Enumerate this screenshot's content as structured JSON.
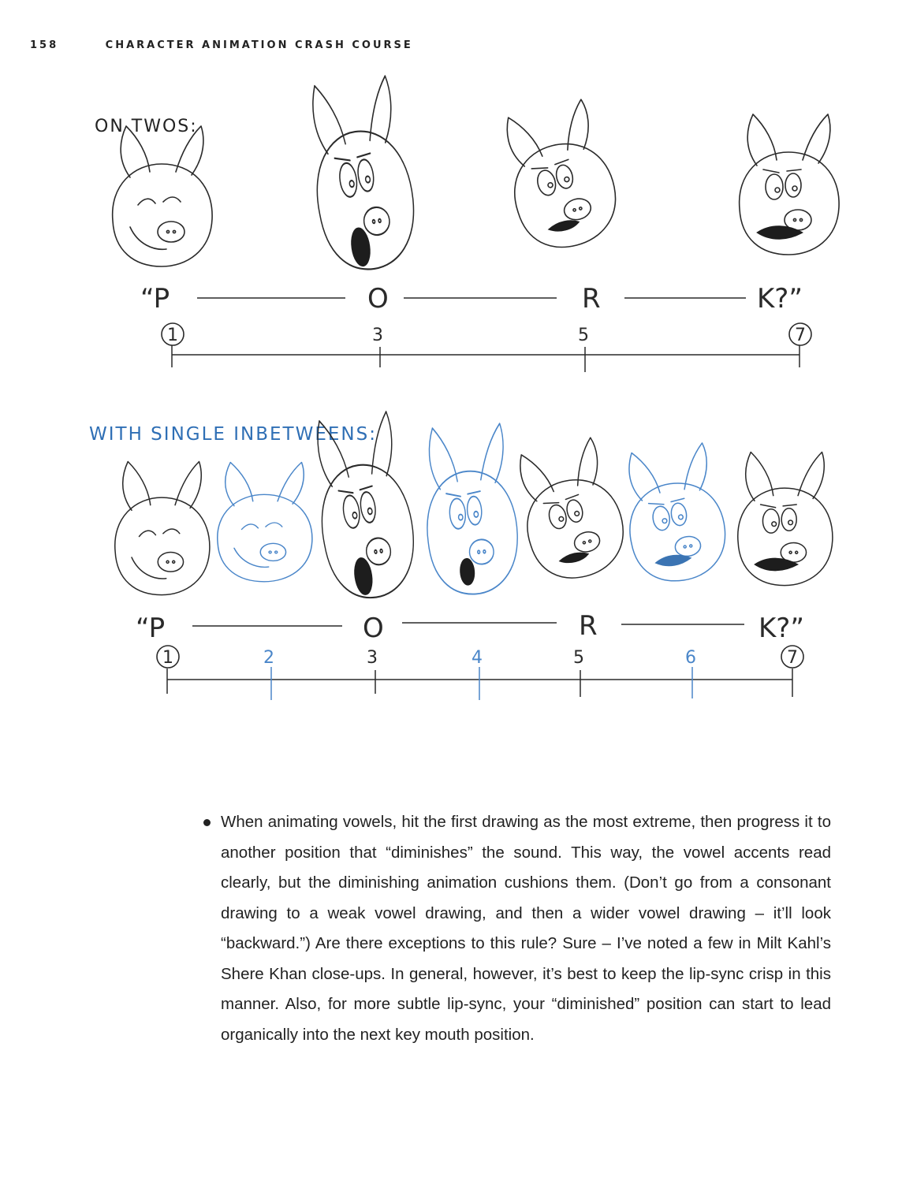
{
  "header": {
    "page_number": "158",
    "book_title": "CHARACTER ANIMATION CRASH COURSE"
  },
  "section_on_twos": {
    "label": "ON TWOS:",
    "phonemes": [
      "“P",
      "O",
      "R",
      "K?”"
    ],
    "frames": [
      "1",
      "3",
      "5",
      "7"
    ]
  },
  "section_inbetweens": {
    "label": "WITH SINGLE INBETWEENS:",
    "phonemes": [
      "“P",
      "O",
      "R",
      "K?”"
    ],
    "frames": [
      "1",
      "2",
      "3",
      "4",
      "5",
      "6",
      "7"
    ]
  },
  "body": {
    "paragraph": "When animating vowels, hit the first drawing as the most extreme, then progress it to another position that “diminishes” the sound. This way, the vowel accents read clearly, but the diminishing animation cushions them. (Don’t go from a consonant drawing to a weak vowel drawing, and then a wider vowel drawing – it’ll look “backward.”) Are there exceptions to this rule? Sure – I’ve noted a few in Milt Kahl’s Shere Khan close-ups. In general, however, it’s best to keep the lip-sync crisp in this manner. Also, for more subtle lip-sync, your “diminished” position can start to lead organically into the next key mouth position."
  },
  "colors": {
    "ink": "#2a2a2a",
    "inbetween_blue": "#4a86c9"
  }
}
